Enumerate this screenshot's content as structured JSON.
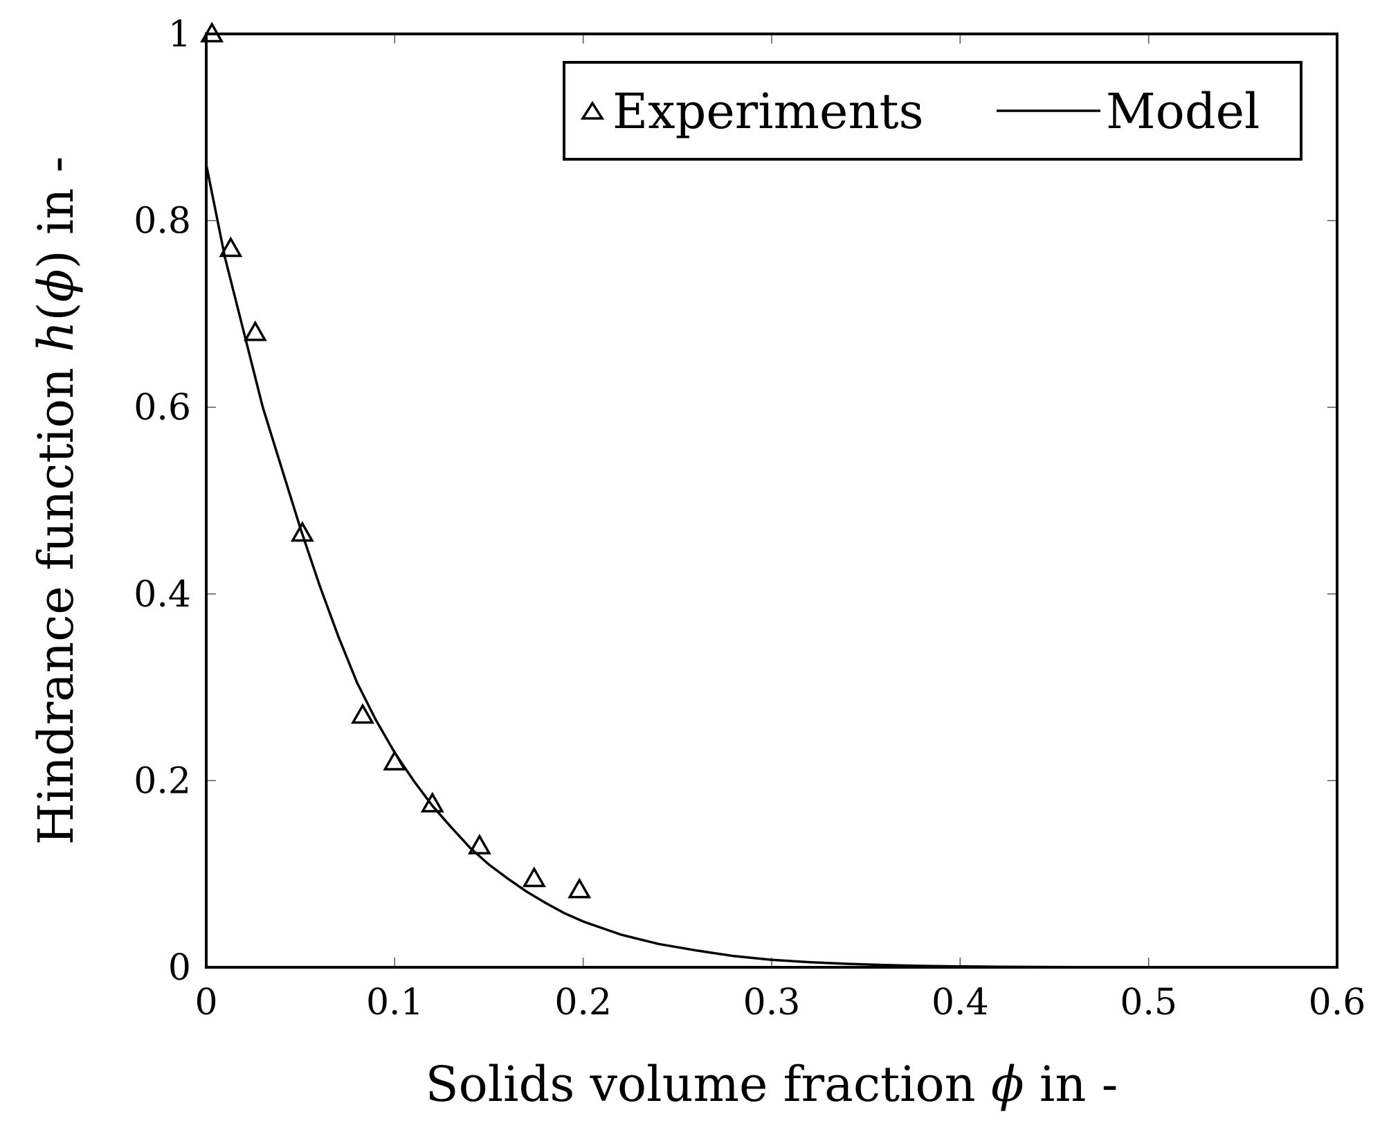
{
  "chart_data": {
    "type": "scatter",
    "xlabel_prefix": "Solids volume fraction ",
    "xlabel_symbol": "ϕ",
    "xlabel_suffix": " in -",
    "ylabel_prefix": "Hindrance function ",
    "ylabel_symbol": "h",
    "ylabel_paren_open": "(",
    "ylabel_paren_symbol": "ϕ",
    "ylabel_paren_close": ")",
    "ylabel_suffix": " in -",
    "xlim": [
      0,
      0.6
    ],
    "ylim": [
      0,
      1
    ],
    "x_ticks": [
      0,
      0.1,
      0.2,
      0.3,
      0.4,
      0.5,
      0.6
    ],
    "x_tick_labels": [
      "0",
      "0.1",
      "0.2",
      "0.3",
      "0.4",
      "0.5",
      "0.6"
    ],
    "y_ticks": [
      0,
      0.2,
      0.4,
      0.6,
      0.8,
      1
    ],
    "y_tick_labels": [
      "0",
      "0.2",
      "0.4",
      "0.6",
      "0.8",
      "1"
    ],
    "grid": false,
    "legend_position": "top-right",
    "series": [
      {
        "name": "Experiments",
        "kind": "scatter",
        "marker": "triangle",
        "color": "#000000",
        "x": [
          0.003,
          0.013,
          0.026,
          0.051,
          0.083,
          0.1,
          0.12,
          0.145,
          0.174,
          0.198
        ],
        "y": [
          1.0,
          0.77,
          0.68,
          0.465,
          0.27,
          0.22,
          0.175,
          0.13,
          0.095,
          0.083
        ]
      },
      {
        "name": "Model",
        "kind": "line",
        "color": "#000000",
        "x": [
          0.0,
          0.01,
          0.02,
          0.03,
          0.04,
          0.05,
          0.06,
          0.07,
          0.08,
          0.09,
          0.1,
          0.11,
          0.12,
          0.13,
          0.14,
          0.15,
          0.16,
          0.17,
          0.18,
          0.19,
          0.2,
          0.22,
          0.24,
          0.26,
          0.28,
          0.3,
          0.32,
          0.34,
          0.36,
          0.38,
          0.4,
          0.42,
          0.44,
          0.46,
          0.48,
          0.5
        ],
        "y": [
          0.86,
          0.76,
          0.68,
          0.6,
          0.535,
          0.47,
          0.41,
          0.355,
          0.305,
          0.265,
          0.23,
          0.2,
          0.173,
          0.15,
          0.128,
          0.11,
          0.095,
          0.081,
          0.069,
          0.058,
          0.049,
          0.035,
          0.025,
          0.018,
          0.012,
          0.008,
          0.0055,
          0.0037,
          0.0024,
          0.0015,
          0.001,
          0.0006,
          0.0004,
          0.0002,
          0.0001,
          0.0
        ]
      }
    ]
  }
}
